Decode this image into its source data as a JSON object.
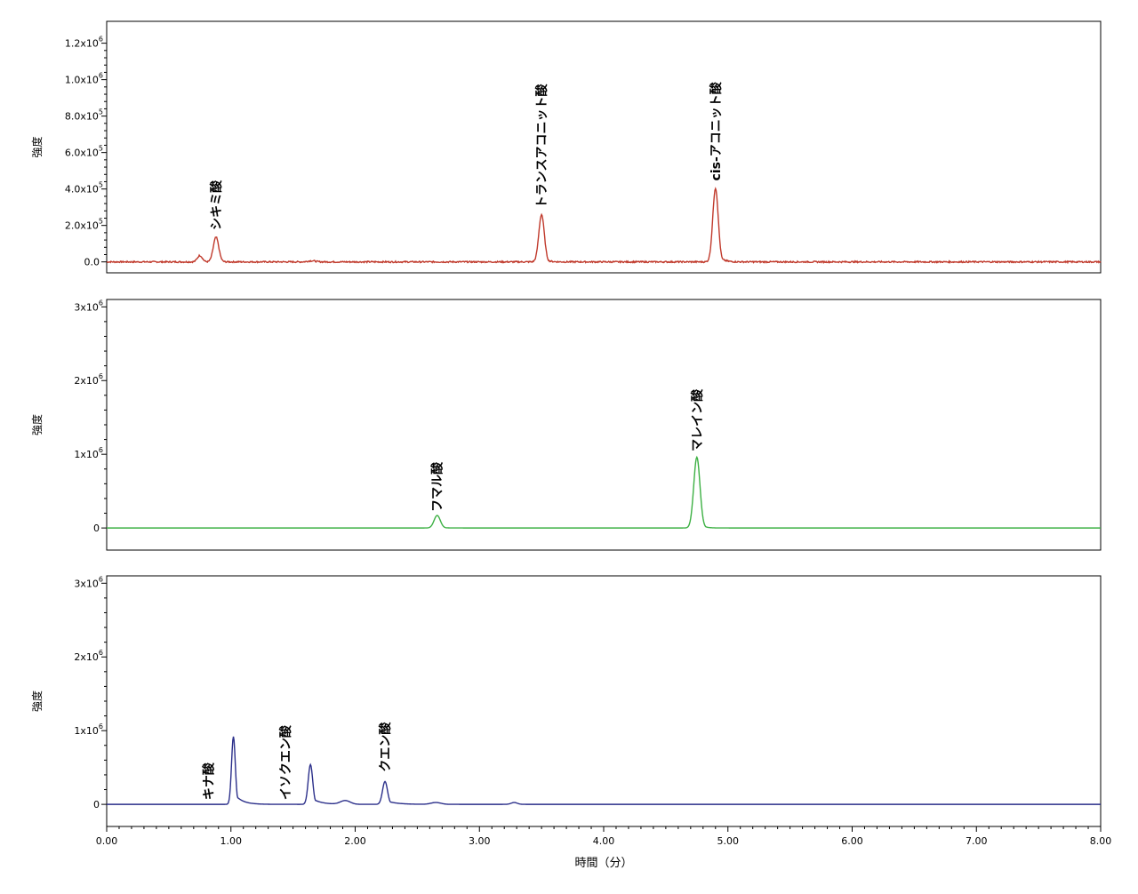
{
  "chart_data": [
    {
      "type": "line",
      "name": "top-panel",
      "ylabel": "強度",
      "ylim": [
        -60000,
        1320000
      ],
      "yticks": [
        {
          "value": 0,
          "label": "0.0"
        },
        {
          "value": 200000,
          "label": "2.0x10",
          "exp": "5"
        },
        {
          "value": 400000,
          "label": "4.0x10",
          "exp": "5"
        },
        {
          "value": 600000,
          "label": "6.0x10",
          "exp": "5"
        },
        {
          "value": 800000,
          "label": "8.0x10",
          "exp": "5"
        },
        {
          "value": 1000000,
          "label": "1.0x10",
          "exp": "6"
        },
        {
          "value": 1200000,
          "label": "1.2x10",
          "exp": "6"
        }
      ],
      "xlim": [
        0,
        8
      ],
      "color": "#c0392b",
      "noise": 8000,
      "peaks": [
        {
          "rt": 0.75,
          "height": 35000,
          "width": 0.02
        },
        {
          "rt": 0.88,
          "height": 135000,
          "width": 0.022
        },
        {
          "rt": 1.65,
          "height": 6000,
          "width": 0.03
        },
        {
          "rt": 3.5,
          "height": 260000,
          "width": 0.022,
          "tail": 0.03
        },
        {
          "rt": 4.9,
          "height": 405000,
          "width": 0.022,
          "tail": 0.035
        }
      ],
      "annotations": [
        {
          "text": "シキミ酸",
          "rt": 0.88,
          "y": 175000
        },
        {
          "text": "トランスアコニット酸",
          "rt": 3.5,
          "y": 295000
        },
        {
          "text": "cis-アコニット酸",
          "rt": 4.9,
          "y": 445000
        }
      ]
    },
    {
      "type": "line",
      "name": "middle-panel",
      "ylabel": "強度",
      "ylim": [
        -300000,
        3100000
      ],
      "yticks": [
        {
          "value": 0,
          "label": "0"
        },
        {
          "value": 1000000,
          "label": "1x10",
          "exp": "6"
        },
        {
          "value": 2000000,
          "label": "2x10",
          "exp": "6"
        },
        {
          "value": 3000000,
          "label": "3x10",
          "exp": "6"
        }
      ],
      "xlim": [
        0,
        8
      ],
      "color": "#3cb043",
      "noise": 0,
      "peaks": [
        {
          "rt": 2.66,
          "height": 170000,
          "width": 0.025,
          "tail": 0.03
        },
        {
          "rt": 4.75,
          "height": 960000,
          "width": 0.025,
          "tail": 0.03
        }
      ],
      "annotations": [
        {
          "text": "フマル酸",
          "rt": 2.66,
          "y": 220000
        },
        {
          "text": "マレイン酸",
          "rt": 4.75,
          "y": 1040000
        }
      ]
    },
    {
      "type": "line",
      "name": "bottom-panel",
      "ylabel": "強度",
      "ylim": [
        -300000,
        3100000
      ],
      "yticks": [
        {
          "value": 0,
          "label": "0"
        },
        {
          "value": 1000000,
          "label": "1x10",
          "exp": "6"
        },
        {
          "value": 2000000,
          "label": "2x10",
          "exp": "6"
        },
        {
          "value": 3000000,
          "label": "3x10",
          "exp": "6"
        }
      ],
      "xlim": [
        0,
        8
      ],
      "xticks": [
        "0.00",
        "1.00",
        "2.00",
        "3.00",
        "4.00",
        "5.00",
        "6.00",
        "7.00",
        "8.00"
      ],
      "xlabel": "時間（分）",
      "color": "#2b2f8a",
      "noise": 0,
      "peaks": [
        {
          "rt": 1.02,
          "height": 920000,
          "width": 0.015,
          "tail": 0.06
        },
        {
          "rt": 1.64,
          "height": 540000,
          "width": 0.018,
          "tail": 0.07
        },
        {
          "rt": 1.92,
          "height": 50000,
          "width": 0.04
        },
        {
          "rt": 2.24,
          "height": 310000,
          "width": 0.02,
          "tail": 0.08
        },
        {
          "rt": 2.65,
          "height": 25000,
          "width": 0.04
        },
        {
          "rt": 3.28,
          "height": 25000,
          "width": 0.025
        }
      ],
      "annotations": [
        {
          "text": "キナ酸",
          "rt": 0.82,
          "y": 60000
        },
        {
          "text": "イソクエン酸",
          "rt": 1.44,
          "y": 60000
        },
        {
          "text": "クエン酸",
          "rt": 2.24,
          "y": 440000
        }
      ]
    }
  ]
}
